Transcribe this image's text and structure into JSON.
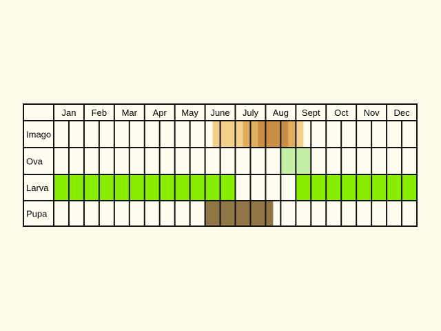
{
  "months": [
    "Jan",
    "Feb",
    "Mar",
    "Apr",
    "May",
    "June",
    "July",
    "Aug",
    "Sept",
    "Oct",
    "Nov",
    "Dec"
  ],
  "stages": [
    {
      "label": "Imago",
      "spans": [
        {
          "start_half": 10.5,
          "end_half": 16.5,
          "color": "#f2d08a"
        },
        {
          "start_half": 12.5,
          "end_half": 16.0,
          "color": "#dfae5e"
        },
        {
          "start_half": 13.5,
          "end_half": 15.5,
          "color": "#c98f44"
        }
      ]
    },
    {
      "label": "Ova",
      "spans": [
        {
          "start_half": 15.0,
          "end_half": 17.0,
          "color": "#c6efa6"
        }
      ]
    },
    {
      "label": "Larva",
      "spans": [
        {
          "start_half": 0.0,
          "end_half": 12.0,
          "color": "#88ee00"
        },
        {
          "start_half": 16.0,
          "end_half": 24.0,
          "color": "#88ee00"
        }
      ]
    },
    {
      "label": "Pupa",
      "spans": [
        {
          "start_half": 10.0,
          "end_half": 14.5,
          "color": "#907545"
        }
      ]
    }
  ]
}
